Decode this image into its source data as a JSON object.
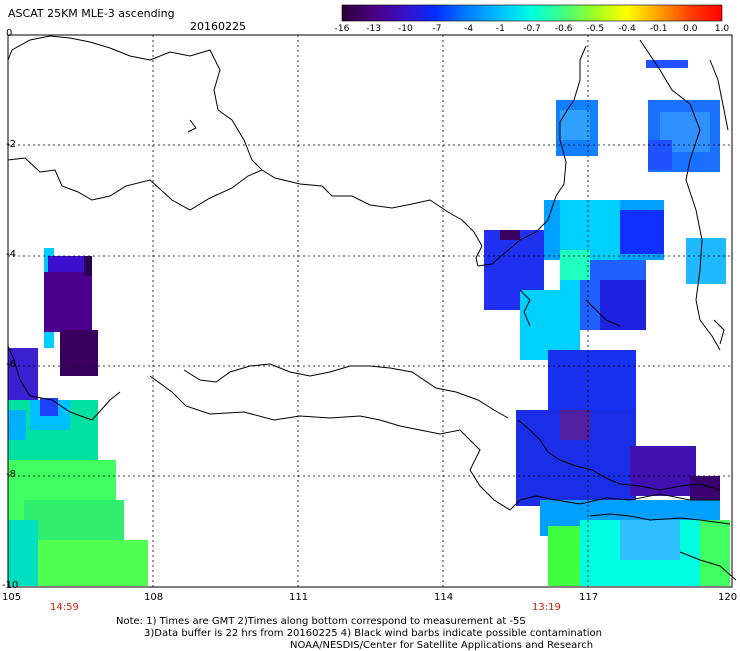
{
  "header": {
    "title": "ASCAT 25KM MLE-3 ascending",
    "date": "20160225"
  },
  "colorbar": {
    "labels": [
      "-16",
      "-13",
      "-10",
      "-7",
      "-4",
      "-1",
      "-0.7",
      "-0.6",
      "-0.5",
      "-0.4",
      "-0.1",
      "0.0",
      "1.0"
    ],
    "colors": [
      "#2a0038",
      "#4b0080",
      "#3a10c8",
      "#0030ff",
      "#0080ff",
      "#00c0ff",
      "#00ffe0",
      "#40ff80",
      "#a0ff20",
      "#ffff00",
      "#ffa000",
      "#ff4000",
      "#ff0000"
    ]
  },
  "axes": {
    "x_ticks": [
      "105",
      "108",
      "111",
      "114",
      "117",
      "120"
    ],
    "y_ticks": [
      "0",
      "-2",
      "-4",
      "-6",
      "-8",
      "-10"
    ]
  },
  "times": {
    "left": "14:59",
    "right": "13:19"
  },
  "notes": {
    "line1": "Note: 1) Times are GMT 2)Times along bottom correspond to measurement at -5S",
    "line2": "3)Data buffer is 22 hrs from 20160225 4) Black wind barbs indicate possible contamination",
    "line3": "NOAA/NESDIS/Center for Satellite Applications and Research"
  }
}
